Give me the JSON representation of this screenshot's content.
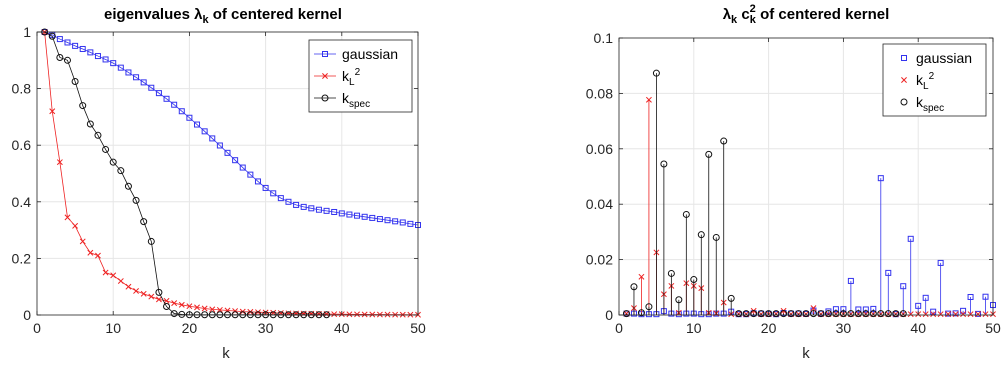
{
  "chart_data": [
    {
      "type": "line",
      "title_main": "eigenvalues ",
      "title_symbol": "λ",
      "title_sub": "k",
      "title_tail": " of centered kernel",
      "xlabel": "k",
      "ylabel": "",
      "xlim": [
        0,
        50
      ],
      "ylim": [
        0,
        1
      ],
      "xticks": [
        0,
        10,
        20,
        30,
        40,
        50
      ],
      "yticks": [
        0,
        0.2,
        0.4,
        0.6,
        0.8,
        1
      ],
      "ytick_labels": [
        "0",
        "0.2",
        "0.4",
        "0.6",
        "0.8",
        "1"
      ],
      "grid": true,
      "legend_position": "top-right",
      "series": [
        {
          "name": "gaussian",
          "legend_sub": "",
          "legend_sup": "",
          "color": "#3333ee",
          "marker": "square",
          "x": [
            1,
            2,
            3,
            4,
            5,
            6,
            7,
            8,
            9,
            10,
            11,
            12,
            13,
            14,
            15,
            16,
            17,
            18,
            19,
            20,
            21,
            22,
            23,
            24,
            25,
            26,
            27,
            28,
            29,
            30,
            31,
            32,
            33,
            34,
            35,
            36,
            37,
            38,
            39,
            40,
            41,
            42,
            43,
            44,
            45,
            46,
            47,
            48,
            49,
            50
          ],
          "y": [
            1.0,
            0.99,
            0.975,
            0.963,
            0.951,
            0.94,
            0.928,
            0.915,
            0.903,
            0.89,
            0.874,
            0.857,
            0.84,
            0.822,
            0.803,
            0.784,
            0.764,
            0.743,
            0.72,
            0.697,
            0.673,
            0.649,
            0.624,
            0.599,
            0.573,
            0.547,
            0.521,
            0.496,
            0.472,
            0.449,
            0.43,
            0.413,
            0.4,
            0.389,
            0.382,
            0.377,
            0.372,
            0.368,
            0.364,
            0.359,
            0.355,
            0.351,
            0.347,
            0.343,
            0.339,
            0.335,
            0.331,
            0.327,
            0.322,
            0.318
          ]
        },
        {
          "name": "k",
          "legend_sub": "L",
          "legend_sup": "2",
          "color": "#ee2222",
          "marker": "x",
          "x": [
            1,
            2,
            3,
            4,
            5,
            6,
            7,
            8,
            9,
            10,
            11,
            12,
            13,
            14,
            15,
            16,
            17,
            18,
            19,
            20,
            21,
            22,
            23,
            24,
            25,
            26,
            27,
            28,
            29,
            30,
            31,
            32,
            33,
            34,
            35,
            36,
            37,
            38,
            39,
            40,
            41,
            42,
            43,
            44,
            45,
            46,
            47,
            48,
            49,
            50
          ],
          "y": [
            1.0,
            0.72,
            0.54,
            0.345,
            0.315,
            0.26,
            0.22,
            0.21,
            0.15,
            0.14,
            0.12,
            0.1,
            0.085,
            0.075,
            0.065,
            0.055,
            0.05,
            0.042,
            0.036,
            0.031,
            0.027,
            0.023,
            0.02,
            0.018,
            0.016,
            0.014,
            0.012,
            0.011,
            0.01,
            0.009,
            0.008,
            0.007,
            0.006,
            0.0055,
            0.005,
            0.0045,
            0.004,
            0.0035,
            0.003,
            0.0028,
            0.0025,
            0.0023,
            0.002,
            0.0018,
            0.0016,
            0.0014,
            0.0012,
            0.0011,
            0.001,
            0.0009
          ]
        },
        {
          "name": "k",
          "legend_sub": "spec",
          "legend_sup": "",
          "color": "#111111",
          "marker": "circle",
          "x": [
            1,
            2,
            3,
            4,
            5,
            6,
            7,
            8,
            9,
            10,
            11,
            12,
            13,
            14,
            15,
            16,
            17,
            18,
            19,
            20,
            21,
            22,
            23,
            24,
            25,
            26,
            27,
            28,
            29,
            30,
            31,
            32,
            33,
            34,
            35,
            36,
            37,
            38
          ],
          "y": [
            1.0,
            0.985,
            0.91,
            0.9,
            0.825,
            0.74,
            0.675,
            0.635,
            0.585,
            0.54,
            0.51,
            0.455,
            0.405,
            0.33,
            0.26,
            0.08,
            0.03,
            0.005,
            0.002,
            0.001,
            0.001,
            0.001,
            0.001,
            0.001,
            0.001,
            0.001,
            0.001,
            0.001,
            0.001,
            0.001,
            0.001,
            0.001,
            0.001,
            0.001,
            0.001,
            0.001,
            0.001,
            0.001
          ]
        }
      ]
    },
    {
      "type": "stem",
      "title_main": "",
      "title_symbol": "λ",
      "title_sub": "k",
      "title_tail2": " c",
      "title_sub2": "k",
      "title_sup2": "2",
      "title_tail": " of centered kernel",
      "xlabel": "k",
      "ylabel": "",
      "xlim": [
        0,
        50
      ],
      "ylim": [
        0,
        0.1
      ],
      "xticks": [
        0,
        10,
        20,
        30,
        40,
        50
      ],
      "yticks": [
        0,
        0.02,
        0.04,
        0.06,
        0.08,
        0.1
      ],
      "ytick_labels": [
        "0",
        "0.02",
        "0.04",
        "0.06",
        "0.08",
        "0.1"
      ],
      "grid": true,
      "legend_position": "top-right",
      "series": [
        {
          "name": "gaussian",
          "legend_sub": "",
          "legend_sup": "",
          "color": "#3333ee",
          "marker": "square",
          "x": [
            1,
            2,
            3,
            4,
            5,
            6,
            7,
            8,
            9,
            10,
            11,
            12,
            13,
            14,
            15,
            16,
            17,
            18,
            19,
            20,
            21,
            22,
            23,
            24,
            25,
            26,
            27,
            28,
            29,
            30,
            31,
            32,
            33,
            34,
            35,
            36,
            37,
            38,
            39,
            40,
            41,
            42,
            43,
            44,
            45,
            46,
            47,
            48,
            49,
            50
          ],
          "y": [
            0.0005,
            0.0005,
            0.0003,
            0.0003,
            0.0003,
            0.0014,
            0.0005,
            0.0003,
            0.0005,
            0.0005,
            0.0003,
            0.0003,
            0.0005,
            0.0005,
            0.0012,
            0.0003,
            0.0003,
            0.0006,
            0.0005,
            0.0004,
            0.0003,
            0.0007,
            0.0005,
            0.0005,
            0.0004,
            0.0016,
            0.0005,
            0.0013,
            0.0021,
            0.0021,
            0.0123,
            0.002,
            0.002,
            0.0022,
            0.0494,
            0.0152,
            0.0003,
            0.0104,
            0.0275,
            0.0033,
            0.0062,
            0.0012,
            0.0188,
            0.0005,
            0.0006,
            0.0015,
            0.0065,
            0.0004,
            0.0066,
            0.0036
          ]
        },
        {
          "name": "k",
          "legend_sub": "L",
          "legend_sup": "2",
          "color": "#ee2222",
          "marker": "x",
          "x": [
            1,
            2,
            3,
            4,
            5,
            6,
            7,
            8,
            9,
            10,
            11,
            12,
            13,
            14,
            15,
            16,
            17,
            18,
            19,
            20,
            21,
            22,
            23,
            24,
            25,
            26,
            27,
            28,
            29,
            30,
            31,
            32,
            33,
            34,
            35,
            36,
            37,
            38,
            39,
            40,
            41,
            42,
            43,
            44,
            45,
            46,
            47,
            48,
            49,
            50
          ],
          "y": [
            0.0005,
            0.0025,
            0.0138,
            0.0777,
            0.0226,
            0.0075,
            0.0105,
            0.0008,
            0.0115,
            0.0105,
            0.0097,
            0.0008,
            0.0006,
            0.0045,
            0.0003,
            0.0004,
            0.0003,
            0.0015,
            0.0003,
            0.0003,
            0.0004,
            0.0015,
            0.0003,
            0.0003,
            0.0003,
            0.0025,
            0.0003,
            0.0003,
            0.0003,
            0.0003,
            0.0003,
            0.0003,
            0.0003,
            0.0003,
            0.0003,
            0.0003,
            0.0003,
            0.0003,
            0.0003,
            0.0003,
            0.0003,
            0.0003,
            0.0003,
            0.0003,
            0.0003,
            0.0003,
            0.0003,
            0.0003,
            0.0003,
            0.0003
          ]
        },
        {
          "name": "k",
          "legend_sub": "spec",
          "legend_sup": "",
          "color": "#111111",
          "marker": "circle",
          "x": [
            1,
            2,
            3,
            4,
            5,
            6,
            7,
            8,
            9,
            10,
            11,
            12,
            13,
            14,
            15,
            16,
            17,
            18,
            19,
            20,
            21,
            22,
            23,
            24,
            25,
            26,
            27,
            28,
            29,
            30,
            31,
            32,
            33,
            34,
            35,
            36,
            37,
            38
          ],
          "y": [
            0.0005,
            0.0102,
            0.0008,
            0.003,
            0.0873,
            0.0545,
            0.015,
            0.0055,
            0.0363,
            0.0128,
            0.029,
            0.058,
            0.028,
            0.0628,
            0.006,
            0.0005,
            0.0005,
            0.0005,
            0.0005,
            0.0005,
            0.0005,
            0.0005,
            0.0005,
            0.0005,
            0.0005,
            0.0005,
            0.0005,
            0.0005,
            0.0005,
            0.0005,
            0.0005,
            0.0005,
            0.0005,
            0.0005,
            0.0005,
            0.0005,
            0.0005,
            0.0005
          ]
        }
      ]
    }
  ]
}
